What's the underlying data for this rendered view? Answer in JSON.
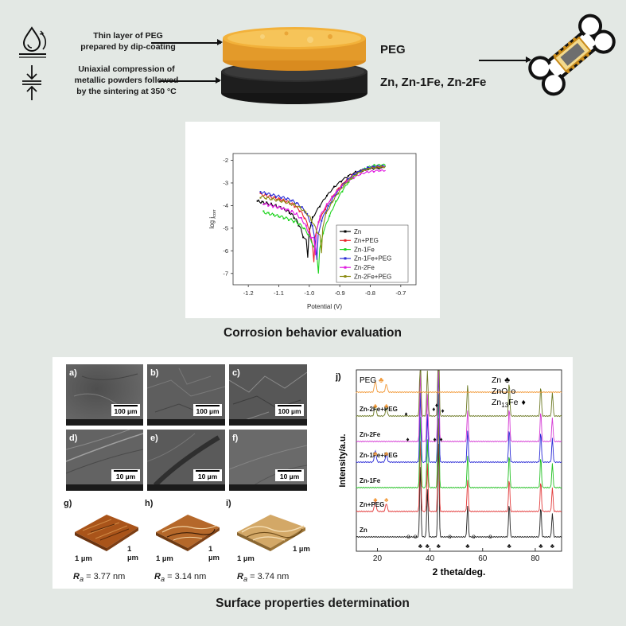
{
  "top": {
    "step1": "Thin layer of PEG prepared by dip-coating",
    "step1_l1": "Thin layer of PEG",
    "step1_l2": "prepared by dip-coating",
    "step2_l1": "Uniaxial compression of",
    "step2_l2": "metallic powders followed",
    "step2_l3": "by the sintering at 350 °C",
    "label_top_disk": "PEG",
    "label_bottom_disk": "Zn, Zn-1Fe, Zn-2Fe",
    "icons": [
      "droplet-icon",
      "compression-icon",
      "bone-implant-icon"
    ]
  },
  "corrosion": {
    "title": "Corrosion behavior evaluation",
    "chart_data": {
      "type": "line",
      "xlabel": "Potential (V)",
      "ylabel": "log jcorr",
      "xlim": [
        -1.25,
        -0.65
      ],
      "ylim": [
        -7.5,
        -1.7
      ],
      "x_ticks": [
        "-1.2",
        "-1.1",
        "-1.0",
        "-0.9",
        "-0.8",
        "-0.7"
      ],
      "y_ticks": [
        "-2",
        "-3",
        "-4",
        "-5",
        "-6",
        "-7"
      ],
      "legend_position": "bottom-right",
      "series": [
        {
          "name": "Zn",
          "color": "#000000",
          "ecorr": -1.005,
          "jmin": -6.3,
          "cath_start": [
            -1.17,
            -3.8
          ],
          "anod_end": [
            -0.76,
            -2.35
          ]
        },
        {
          "name": "Zn+PEG",
          "color": "#e8232a",
          "ecorr": -0.985,
          "jmin": -6.5,
          "cath_start": [
            -1.16,
            -3.5
          ],
          "anod_end": [
            -0.755,
            -2.3
          ]
        },
        {
          "name": "Zn-1Fe",
          "color": "#1fd41f",
          "ecorr": -0.97,
          "jmin": -7.0,
          "cath_start": [
            -1.15,
            -4.3
          ],
          "anod_end": [
            -0.75,
            -2.2
          ]
        },
        {
          "name": "Zn-1Fe+PEG",
          "color": "#2a2ad6",
          "ecorr": -0.975,
          "jmin": -6.4,
          "cath_start": [
            -1.16,
            -3.4
          ],
          "anod_end": [
            -0.75,
            -2.25
          ]
        },
        {
          "name": "Zn-2Fe",
          "color": "#e01be0",
          "ecorr": -0.98,
          "jmin": -6.2,
          "cath_start": [
            -1.15,
            -3.9
          ],
          "anod_end": [
            -0.75,
            -2.45
          ]
        },
        {
          "name": "Zn-2Fe+PEG",
          "color": "#8b8b12",
          "ecorr": -0.96,
          "jmin": -6.1,
          "cath_start": [
            -1.16,
            -3.6
          ],
          "anod_end": [
            -0.75,
            -2.3
          ]
        }
      ]
    }
  },
  "surface": {
    "title": "Surface properties determination",
    "sem": [
      {
        "label": "a)",
        "scale": "100 µm"
      },
      {
        "label": "b)",
        "scale": "100 µm"
      },
      {
        "label": "c)",
        "scale": "100 µm"
      },
      {
        "label": "d)",
        "scale": "10 µm"
      },
      {
        "label": "e)",
        "scale": "10 µm"
      },
      {
        "label": "f)",
        "scale": "10 µm"
      }
    ],
    "afm": [
      {
        "label": "g)",
        "axis": "1 µm",
        "ra_prefix": "R",
        "ra_sub": "a",
        "ra_value": " = 3.77 nm",
        "color": "#b5621e"
      },
      {
        "label": "h)",
        "axis": "1 µm",
        "ra_prefix": "R",
        "ra_sub": "a",
        "ra_value": " = 3.14 nm",
        "color": "#b96d27"
      },
      {
        "label": "i)",
        "axis": "1 µm",
        "ra_prefix": "R",
        "ra_sub": "a",
        "ra_value": " = 3.74 nm",
        "color": "#c99a55"
      }
    ],
    "xrd": {
      "label": "j)",
      "ylabel": "Intensity/a.u.",
      "xlabel": "2 theta/deg.",
      "x_ticks": [
        "20",
        "40",
        "60",
        "80"
      ],
      "xlim": [
        12,
        90
      ],
      "legend_left": "PEG",
      "legend_right": [
        {
          "text": "Zn",
          "symbol": "♣"
        },
        {
          "text": "ZnO",
          "symbol": "o"
        },
        {
          "text": "Zn",
          "sub": "13",
          "text2": "Fe",
          "symbol": "♦"
        }
      ],
      "chart_data": {
        "type": "line",
        "series": [
          {
            "name": "Zn",
            "color": "#222222"
          },
          {
            "name": "Zn+PEG",
            "color": "#e23a3a"
          },
          {
            "name": "Zn-1Fe",
            "color": "#22c022"
          },
          {
            "name": "Zn-1Fe+PEG",
            "color": "#2a2ad6"
          },
          {
            "name": "Zn-2Fe",
            "color": "#d43ad4"
          },
          {
            "name": "Zn-2Fe+PEG",
            "color": "#6d7a25"
          },
          {
            "name": "PEG",
            "color": "#f29a3a"
          }
        ]
      }
    }
  }
}
